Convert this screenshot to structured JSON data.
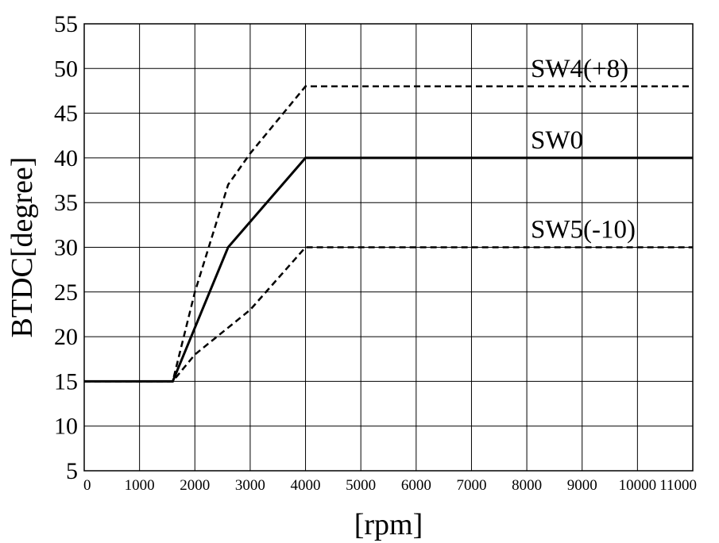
{
  "chart_data": {
    "type": "line",
    "title": "",
    "xlabel": "[rpm]",
    "ylabel": "BTDC[degree]",
    "xlim": [
      0,
      11000
    ],
    "ylim": [
      5,
      55
    ],
    "x_ticks": [
      0,
      1000,
      2000,
      3000,
      4000,
      5000,
      6000,
      7000,
      8000,
      9000,
      10000,
      11000
    ],
    "y_ticks": [
      5,
      10,
      15,
      20,
      25,
      30,
      35,
      40,
      45,
      50,
      55
    ],
    "grid": true,
    "legend": "none",
    "series": [
      {
        "name": "SW4(+8)",
        "style": "dashed",
        "x": [
          0,
          1600,
          2000,
          2600,
          3000,
          4000,
          11000
        ],
        "y": [
          15,
          15,
          25,
          37,
          40.5,
          48,
          48
        ]
      },
      {
        "name": "SW0",
        "style": "solid",
        "x": [
          0,
          1600,
          2600,
          4000,
          11000
        ],
        "y": [
          15,
          15,
          30,
          40,
          40
        ]
      },
      {
        "name": "SW5(-10)",
        "style": "dashed",
        "x": [
          0,
          1600,
          2000,
          3000,
          4000,
          11000
        ],
        "y": [
          15,
          15,
          18,
          23,
          30,
          30
        ]
      }
    ]
  },
  "colors": {
    "line": "#000000",
    "grid": "#000000",
    "background": "#ffffff"
  }
}
